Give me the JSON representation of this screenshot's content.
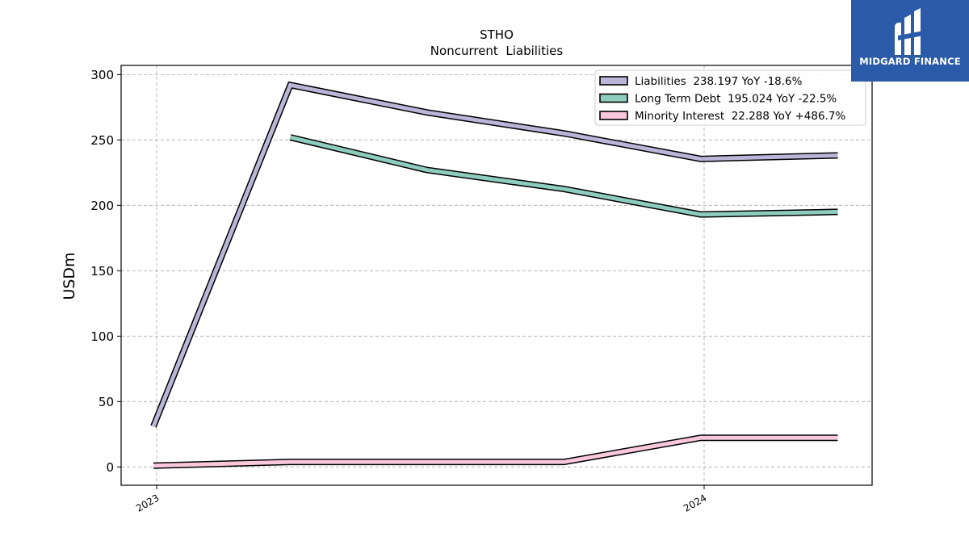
{
  "logo": {
    "text": "MIDGARD FINANCE",
    "color": "#2a5aa8"
  },
  "chart_data": {
    "type": "line",
    "title": "STHO",
    "subtitle": "Noncurrent  Liabilities",
    "xlabel": "",
    "ylabel": "USDm",
    "x_ticks": [
      "2023",
      "2024"
    ],
    "yticks": [
      0,
      50,
      100,
      150,
      200,
      250,
      300
    ],
    "ylim": [
      -14,
      307
    ],
    "x": [
      "2022-12",
      "2023-03",
      "2023-06",
      "2023-09",
      "2023-12",
      "2024-03"
    ],
    "grid": true,
    "legend_position": "top-right",
    "series": [
      {
        "name": "Liabilities",
        "legend": "Liabilities  238.197 YoY -18.6%",
        "color": "#b9b6d8",
        "values": [
          31,
          292,
          271,
          255,
          235.5,
          238.2
        ]
      },
      {
        "name": "Long Term Debt",
        "legend": "Long Term Debt  195.024 YoY -22.5%",
        "color": "#8ecdbd",
        "values": [
          null,
          252,
          227,
          212.5,
          193,
          195
        ]
      },
      {
        "name": "Minority Interest",
        "legend": "Minority Interest  22.288 YoY +486.7%",
        "color": "#f9c8dc",
        "values": [
          1,
          3.8,
          3.8,
          3.8,
          22.3,
          22.3
        ]
      }
    ]
  }
}
